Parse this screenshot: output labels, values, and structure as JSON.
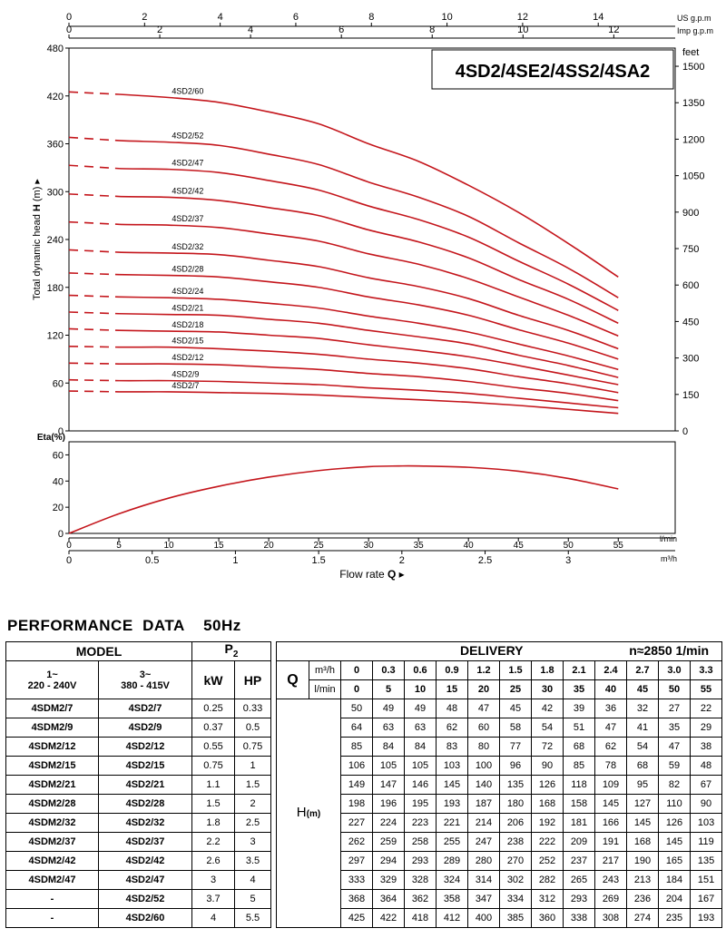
{
  "chart_data": [
    {
      "type": "line",
      "title": "4SD2/4SE2/4SS2/4SA2",
      "ylabel": "Total dynamic head H (m)",
      "ylim": [
        0,
        480
      ],
      "yticks": [
        0,
        60,
        120,
        180,
        240,
        300,
        360,
        420,
        480
      ],
      "y2label": "feet",
      "y2ticks": [
        0,
        150,
        300,
        450,
        600,
        750,
        900,
        1050,
        1200,
        1350,
        1500
      ],
      "top_axis_us": {
        "label": "US g.p.m",
        "ticks": [
          0,
          2,
          4,
          6,
          8,
          10,
          12,
          14
        ]
      },
      "top_axis_imp": {
        "label": "Imp g.p.m",
        "ticks": [
          0,
          2,
          4,
          6,
          8,
          10,
          12
        ]
      },
      "xlim": [
        0,
        55
      ],
      "x": [
        0,
        5,
        10,
        15,
        20,
        25,
        30,
        35,
        40,
        45,
        50,
        55
      ],
      "dashed_until": 5,
      "grid": false,
      "series": [
        {
          "name": "4SD2/60",
          "values": [
            425,
            422,
            418,
            412,
            400,
            385,
            360,
            338,
            308,
            274,
            235,
            193
          ]
        },
        {
          "name": "4SD2/52",
          "values": [
            368,
            364,
            362,
            358,
            347,
            334,
            312,
            293,
            269,
            236,
            204,
            167
          ]
        },
        {
          "name": "4SD2/47",
          "values": [
            333,
            329,
            328,
            324,
            314,
            302,
            282,
            265,
            243,
            213,
            184,
            151
          ]
        },
        {
          "name": "4SD2/42",
          "values": [
            297,
            294,
            293,
            289,
            280,
            270,
            252,
            237,
            217,
            190,
            165,
            135
          ]
        },
        {
          "name": "4SD2/37",
          "values": [
            262,
            259,
            258,
            255,
            247,
            238,
            222,
            209,
            191,
            168,
            145,
            119
          ]
        },
        {
          "name": "4SD2/32",
          "values": [
            227,
            224,
            223,
            221,
            214,
            206,
            192,
            181,
            166,
            145,
            126,
            103
          ]
        },
        {
          "name": "4SD2/28",
          "values": [
            198,
            196,
            195,
            193,
            187,
            180,
            168,
            158,
            145,
            127,
            110,
            90
          ]
        },
        {
          "name": "4SD2/24",
          "values": [
            170,
            168,
            167,
            165,
            160,
            154,
            144,
            135,
            124,
            109,
            94,
            77
          ]
        },
        {
          "name": "4SD2/21",
          "values": [
            149,
            147,
            146,
            145,
            140,
            135,
            126,
            118,
            109,
            95,
            82,
            67
          ]
        },
        {
          "name": "4SD2/18",
          "values": [
            128,
            126,
            125,
            124,
            120,
            116,
            108,
            101,
            93,
            82,
            70,
            58
          ]
        },
        {
          "name": "4SD2/15",
          "values": [
            106,
            105,
            105,
            103,
            100,
            96,
            90,
            85,
            78,
            68,
            59,
            48
          ]
        },
        {
          "name": "4SD2/12",
          "values": [
            85,
            84,
            84,
            83,
            80,
            77,
            72,
            68,
            62,
            54,
            47,
            38
          ]
        },
        {
          "name": "4SD2/9",
          "values": [
            64,
            63,
            63,
            62,
            60,
            58,
            54,
            51,
            47,
            41,
            35,
            29
          ]
        },
        {
          "name": "4SD2/7",
          "values": [
            50,
            49,
            49,
            48,
            47,
            45,
            42,
            39,
            36,
            32,
            27,
            22
          ]
        }
      ]
    },
    {
      "type": "line",
      "ylabel": "Eta(%)",
      "ylim": [
        0,
        70
      ],
      "yticks": [
        0,
        20,
        40,
        60
      ],
      "xlabel": "Flow rate Q",
      "x_axis_lmin": {
        "label": "l/min",
        "ticks": [
          0,
          5,
          10,
          15,
          20,
          25,
          30,
          35,
          40,
          45,
          50,
          55
        ]
      },
      "x_axis_m3h": {
        "label": "m³/h",
        "ticks": [
          "0",
          "0.5",
          "1",
          "1.5",
          "2",
          "2.5",
          "3"
        ]
      },
      "x": [
        0,
        5,
        10,
        15,
        20,
        25,
        30,
        33,
        35,
        40,
        45,
        50,
        55
      ],
      "series": [
        {
          "values": [
            0,
            15,
            27,
            36,
            43,
            48,
            51,
            51.5,
            51.5,
            50.5,
            47.5,
            42,
            34
          ]
        }
      ]
    }
  ],
  "perf": {
    "title": "PERFORMANCE  DATA    50Hz",
    "model_header": "MODEL",
    "p2_header": "P",
    "p2_sub": "2",
    "delivery_header": "DELIVERY",
    "speed": "n≈2850 1/min",
    "single_phase_label": "1~",
    "single_phase_voltage": "220 - 240V",
    "three_phase_label": "3~",
    "three_phase_voltage": "380 - 415V",
    "kw_label": "kW",
    "hp_label": "HP",
    "q_label": "Q",
    "m3h_unit": "m³/h",
    "lmin_unit": "l/min",
    "h_label": "H",
    "h_unit": "(m)",
    "q_m3h": [
      "0",
      "0.3",
      "0.6",
      "0.9",
      "1.2",
      "1.5",
      "1.8",
      "2.1",
      "2.4",
      "2.7",
      "3.0",
      "3.3"
    ],
    "q_lmin": [
      "0",
      "5",
      "10",
      "15",
      "20",
      "25",
      "30",
      "35",
      "40",
      "45",
      "50",
      "55"
    ],
    "rows": [
      {
        "m1": "4SDM2/7",
        "m3": "4SD2/7",
        "kw": "0.25",
        "hp": "0.33",
        "h": [
          "50",
          "49",
          "49",
          "48",
          "47",
          "45",
          "42",
          "39",
          "36",
          "32",
          "27",
          "22"
        ]
      },
      {
        "m1": "4SDM2/9",
        "m3": "4SD2/9",
        "kw": "0.37",
        "hp": "0.5",
        "h": [
          "64",
          "63",
          "63",
          "62",
          "60",
          "58",
          "54",
          "51",
          "47",
          "41",
          "35",
          "29"
        ]
      },
      {
        "m1": "4SDM2/12",
        "m3": "4SD2/12",
        "kw": "0.55",
        "hp": "0.75",
        "h": [
          "85",
          "84",
          "84",
          "83",
          "80",
          "77",
          "72",
          "68",
          "62",
          "54",
          "47",
          "38"
        ]
      },
      {
        "m1": "4SDM2/15",
        "m3": "4SD2/15",
        "kw": "0.75",
        "hp": "1",
        "h": [
          "106",
          "105",
          "105",
          "103",
          "100",
          "96",
          "90",
          "85",
          "78",
          "68",
          "59",
          "48"
        ]
      },
      {
        "m1": "4SDM2/21",
        "m3": "4SD2/21",
        "kw": "1.1",
        "hp": "1.5",
        "h": [
          "149",
          "147",
          "146",
          "145",
          "140",
          "135",
          "126",
          "118",
          "109",
          "95",
          "82",
          "67"
        ]
      },
      {
        "m1": "4SDM2/28",
        "m3": "4SD2/28",
        "kw": "1.5",
        "hp": "2",
        "h": [
          "198",
          "196",
          "195",
          "193",
          "187",
          "180",
          "168",
          "158",
          "145",
          "127",
          "110",
          "90"
        ]
      },
      {
        "m1": "4SDM2/32",
        "m3": "4SD2/32",
        "kw": "1.8",
        "hp": "2.5",
        "h": [
          "227",
          "224",
          "223",
          "221",
          "214",
          "206",
          "192",
          "181",
          "166",
          "145",
          "126",
          "103"
        ]
      },
      {
        "m1": "4SDM2/37",
        "m3": "4SD2/37",
        "kw": "2.2",
        "hp": "3",
        "h": [
          "262",
          "259",
          "258",
          "255",
          "247",
          "238",
          "222",
          "209",
          "191",
          "168",
          "145",
          "119"
        ]
      },
      {
        "m1": "4SDM2/42",
        "m3": "4SD2/42",
        "kw": "2.6",
        "hp": "3.5",
        "h": [
          "297",
          "294",
          "293",
          "289",
          "280",
          "270",
          "252",
          "237",
          "217",
          "190",
          "165",
          "135"
        ]
      },
      {
        "m1": "4SDM2/47",
        "m3": "4SD2/47",
        "kw": "3",
        "hp": "4",
        "h": [
          "333",
          "329",
          "328",
          "324",
          "314",
          "302",
          "282",
          "265",
          "243",
          "213",
          "184",
          "151"
        ]
      },
      {
        "m1": "-",
        "m3": "4SD2/52",
        "kw": "3.7",
        "hp": "5",
        "h": [
          "368",
          "364",
          "362",
          "358",
          "347",
          "334",
          "312",
          "293",
          "269",
          "236",
          "204",
          "167"
        ]
      },
      {
        "m1": "-",
        "m3": "4SD2/60",
        "kw": "4",
        "hp": "5.5",
        "h": [
          "425",
          "422",
          "418",
          "412",
          "400",
          "385",
          "360",
          "338",
          "308",
          "274",
          "235",
          "193"
        ]
      }
    ]
  }
}
